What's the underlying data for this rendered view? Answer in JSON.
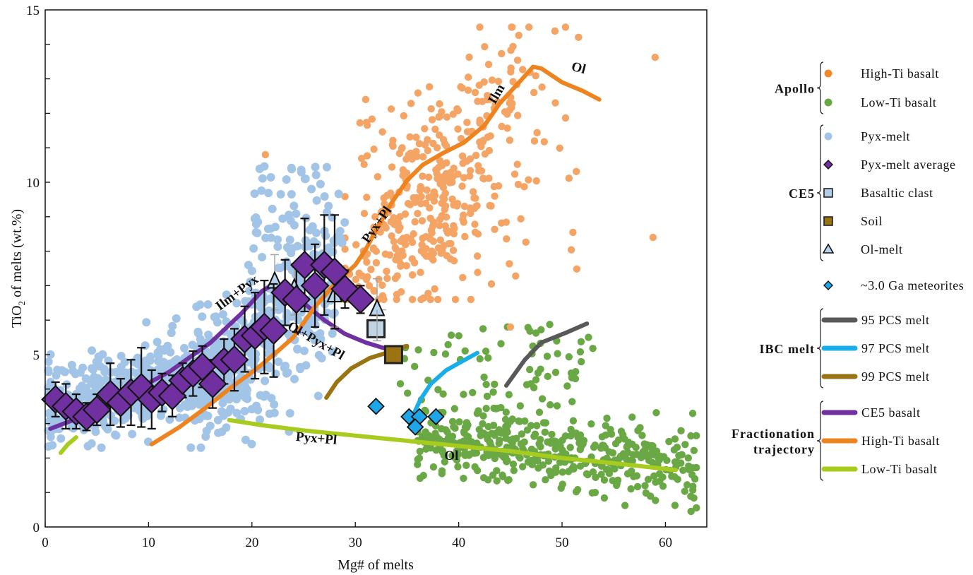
{
  "chart_data": {
    "type": "scatter",
    "title": "",
    "xlabel": "Mg# of melts",
    "ylabel_main": "TiO",
    "ylabel_sub": "2",
    "ylabel_rest": " of melts (wt.%)",
    "xlim": [
      0,
      64
    ],
    "ylim": [
      0,
      15
    ],
    "x_ticks": [
      0,
      10,
      20,
      30,
      40,
      50,
      60
    ],
    "y_ticks": [
      0,
      5,
      10,
      15
    ],
    "grid": false,
    "legend_position": "right",
    "colors": {
      "high_ti": "#f4a464",
      "high_ti_legend": "#ee8a2a",
      "low_ti": "#6aa845",
      "pyx_melt": "#a2c4e6",
      "pyx_avg": "#7030a0",
      "basaltic_clast": "#c0d4e4",
      "soil": "#9a7412",
      "ol_melt": "#b8d4ec",
      "meteorite": "#1ea7e8",
      "pcs95": "#595959",
      "pcs97": "#1aaee8",
      "pcs99": "#9a7412",
      "traj_ce5": "#7030a0",
      "traj_highti": "#ee8420",
      "traj_lowti": "#a8cc1e"
    },
    "series": [
      {
        "name": "Pyx-melt average",
        "marker": "diamond",
        "points": [
          {
            "x": 1.0,
            "y": 3.7,
            "err": 0.5
          },
          {
            "x": 2.0,
            "y": 3.5,
            "err": 0.65
          },
          {
            "x": 3.0,
            "y": 3.35,
            "err": 0.5
          },
          {
            "x": 4.0,
            "y": 3.2,
            "err": 0.4
          },
          {
            "x": 5.0,
            "y": 3.4,
            "err": 0.45
          },
          {
            "x": 6.3,
            "y": 3.85,
            "err": 0.9
          },
          {
            "x": 7.3,
            "y": 3.6,
            "err": 0.7
          },
          {
            "x": 8.3,
            "y": 3.9,
            "err": 0.95
          },
          {
            "x": 9.3,
            "y": 4.05,
            "err": 1.15
          },
          {
            "x": 10.3,
            "y": 3.7,
            "err": 0.85
          },
          {
            "x": 11.3,
            "y": 3.9,
            "err": 0.55
          },
          {
            "x": 12.3,
            "y": 3.8,
            "err": 0.6
          },
          {
            "x": 13.3,
            "y": 4.25,
            "err": 0.5
          },
          {
            "x": 14.3,
            "y": 4.45,
            "err": 0.65
          },
          {
            "x": 15.2,
            "y": 4.65,
            "err": 0.6
          },
          {
            "x": 16.2,
            "y": 4.15,
            "err": 0.7
          },
          {
            "x": 17.3,
            "y": 4.8,
            "err": 0.65
          },
          {
            "x": 18.3,
            "y": 4.85,
            "err": 0.9
          },
          {
            "x": 19.3,
            "y": 5.45,
            "err": 0.95
          },
          {
            "x": 20.3,
            "y": 5.55,
            "err": 1.25
          },
          {
            "x": 21.2,
            "y": 5.8,
            "err": 1.35
          },
          {
            "x": 22.1,
            "y": 5.7,
            "err": 1.35
          },
          {
            "x": 23.2,
            "y": 6.8,
            "err": 0.95
          },
          {
            "x": 24.3,
            "y": 6.6,
            "err": 0.95
          },
          {
            "x": 25.1,
            "y": 7.6,
            "err": 1.35
          },
          {
            "x": 26.1,
            "y": 7.0,
            "err": 1.2
          },
          {
            "x": 27.0,
            "y": 7.6,
            "err": 1.45
          },
          {
            "x": 28.0,
            "y": 7.4,
            "err": 1.65
          },
          {
            "x": 29.0,
            "y": 6.9,
            "err": 0.55
          },
          {
            "x": 30.5,
            "y": 6.6,
            "err": 0.4
          }
        ]
      },
      {
        "name": "Ol-melt",
        "marker": "triangle",
        "points": [
          {
            "x": 22.2,
            "y": 7.1,
            "err": 0.8
          },
          {
            "x": 24.1,
            "y": 6.9,
            "err": 0.75
          },
          {
            "x": 28.0,
            "y": 6.7,
            "err": 0.9
          },
          {
            "x": 32.1,
            "y": 6.3,
            "err": 0.9,
            "xerr": 0.9
          }
        ]
      },
      {
        "name": "Basaltic clast",
        "marker": "square",
        "points": [
          {
            "x": 32.0,
            "y": 5.75
          }
        ]
      },
      {
        "name": "Soil",
        "marker": "square",
        "points": [
          {
            "x": 33.7,
            "y": 5.0
          }
        ]
      },
      {
        "name": "~3.0 Ga meteorites",
        "marker": "diamond",
        "points": [
          {
            "x": 32.0,
            "y": 3.5
          },
          {
            "x": 35.2,
            "y": 3.2
          },
          {
            "x": 36.2,
            "y": 3.2
          },
          {
            "x": 35.8,
            "y": 2.9
          },
          {
            "x": 37.8,
            "y": 3.2
          }
        ]
      }
    ],
    "lines": [
      {
        "name": "95 PCS melt",
        "points": [
          [
            44.6,
            4.1
          ],
          [
            46.4,
            4.85
          ],
          [
            48.0,
            5.35
          ],
          [
            50.5,
            5.65
          ],
          [
            52.4,
            5.9
          ]
        ]
      },
      {
        "name": "97 PCS melt",
        "points": [
          [
            35.6,
            3.25
          ],
          [
            36.3,
            3.7
          ],
          [
            37.3,
            4.15
          ],
          [
            38.8,
            4.55
          ],
          [
            40.3,
            4.8
          ],
          [
            41.8,
            5.05
          ]
        ]
      },
      {
        "name": "99 PCS melt",
        "points": [
          [
            27.2,
            3.75
          ],
          [
            28.2,
            4.2
          ],
          [
            29.6,
            4.6
          ],
          [
            31.4,
            4.9
          ],
          [
            33.0,
            5.05
          ],
          [
            35.0,
            5.25
          ]
        ]
      },
      {
        "name": "CE5 basalt",
        "points": [
          [
            0.5,
            2.85
          ],
          [
            4,
            3.25
          ],
          [
            8,
            3.85
          ],
          [
            12,
            4.5
          ],
          [
            16,
            5.35
          ],
          [
            19,
            6.2
          ],
          [
            21,
            6.85
          ],
          [
            22.2,
            7.05
          ],
          [
            23.4,
            6.9
          ],
          [
            25,
            6.5
          ],
          [
            27,
            6.0
          ],
          [
            29,
            5.6
          ],
          [
            31,
            5.35
          ],
          [
            33.2,
            5.15
          ]
        ]
      },
      {
        "name": "High-Ti basalt",
        "points": [
          [
            10.3,
            2.4
          ],
          [
            13,
            2.9
          ],
          [
            15.5,
            3.45
          ],
          [
            18,
            4.05
          ],
          [
            20.5,
            4.6
          ],
          [
            22.5,
            5.1
          ],
          [
            24,
            5.5
          ],
          [
            26,
            6.35
          ],
          [
            28,
            7.05
          ],
          [
            30,
            7.6
          ],
          [
            31,
            8.05
          ],
          [
            32,
            8.6
          ],
          [
            33.5,
            9.4
          ],
          [
            35,
            10.05
          ],
          [
            36.5,
            10.5
          ],
          [
            38.5,
            10.85
          ],
          [
            40.5,
            11.15
          ],
          [
            42.5,
            11.65
          ],
          [
            44,
            12.3
          ],
          [
            46,
            12.95
          ],
          [
            47.2,
            13.35
          ],
          [
            48,
            13.3
          ],
          [
            50,
            12.9
          ],
          [
            52,
            12.65
          ],
          [
            53.6,
            12.4
          ]
        ]
      },
      {
        "name": "Low-Ti basalt",
        "points": [
          [
            1.5,
            2.15
          ],
          [
            2.2,
            2.4
          ],
          [
            3.0,
            2.6
          ]
        ],
        "extra": [
          [
            17.8,
            3.1
          ],
          [
            21,
            2.95
          ],
          [
            25,
            2.8
          ],
          [
            30,
            2.65
          ],
          [
            35,
            2.5
          ],
          [
            40,
            2.35
          ],
          [
            45,
            2.2
          ],
          [
            50,
            2.0
          ],
          [
            55,
            1.85
          ],
          [
            61,
            1.65
          ]
        ]
      }
    ],
    "annotations": [
      {
        "text": "Ilm+Pyx",
        "x": 18.8,
        "y": 6.7,
        "angle": -37
      },
      {
        "text": "Ol+Pyx+Pl",
        "x": 26,
        "y": 5.3,
        "angle": 30
      },
      {
        "text": "Pyx+Pl",
        "x": 32.4,
        "y": 8.7,
        "angle": -55
      },
      {
        "text": "Ilm",
        "x": 44.0,
        "y": 12.5,
        "angle": -60
      },
      {
        "text": "Ol",
        "x": 51.5,
        "y": 13.2,
        "angle": 15
      },
      {
        "text": "Pyx+Pl",
        "x": 26.2,
        "y": 2.45,
        "angle": 5
      },
      {
        "text": "Ol",
        "x": 39.3,
        "y": 1.95,
        "angle": 0
      }
    ],
    "scatter_clouds": {
      "pyx_melt": {
        "count": 900,
        "seed": 11
      },
      "high_ti": {
        "count": 420,
        "seed": 23
      },
      "low_ti": {
        "count": 480,
        "seed": 37
      }
    }
  },
  "legend": {
    "groups": [
      {
        "label": "Apollo",
        "items": [
          {
            "label": "High-Ti basalt",
            "marker": "circle",
            "color": "#ee8a2a"
          },
          {
            "label": "Low-Ti basalt",
            "marker": "circle",
            "color": "#6aa845"
          }
        ]
      },
      {
        "label": "CE5",
        "items": [
          {
            "label": "Pyx-melt",
            "marker": "circle",
            "color": "#a2c4e6"
          },
          {
            "label": "Pyx-melt average",
            "marker": "diamond",
            "color": "#7030a0"
          },
          {
            "label": "Basaltic clast",
            "marker": "square",
            "color": "#b4cde6"
          },
          {
            "label": "Soil",
            "marker": "square",
            "color": "#9a7412"
          },
          {
            "label": "Ol-melt",
            "marker": "triangle",
            "color": "#b8d4ec"
          }
        ]
      },
      {
        "label": "",
        "items": [
          {
            "label": "~3.0 Ga meteorites",
            "marker": "diamond",
            "color": "#1ea7e8"
          }
        ]
      },
      {
        "label": "IBC melt",
        "items": [
          {
            "label": "95 PCS melt",
            "marker": "line",
            "color": "#595959"
          },
          {
            "label": "97 PCS melt",
            "marker": "line",
            "color": "#1aaee8"
          },
          {
            "label": "99 PCS melt",
            "marker": "line",
            "color": "#9a7412"
          }
        ]
      },
      {
        "label": "Fractionation\ntrajectory",
        "items": [
          {
            "label": "CE5 basalt",
            "marker": "line",
            "color": "#7030a0"
          },
          {
            "label": "High-Ti basalt",
            "marker": "line",
            "color": "#ee8420"
          },
          {
            "label": "Low-Ti basalt",
            "marker": "line",
            "color": "#a8cc1e"
          }
        ]
      }
    ]
  }
}
